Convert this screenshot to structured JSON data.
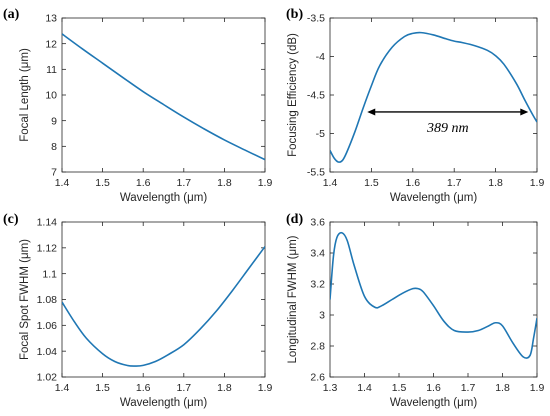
{
  "colors": {
    "line": "#1f77b4",
    "axis": "#262626",
    "annotation": "#000000"
  },
  "chart_data": [
    {
      "type": "line",
      "panel_label": "(a)",
      "xlabel": "Wavelength (μm)",
      "ylabel": "Focal Length (μm)",
      "xlim": [
        1.4,
        1.9
      ],
      "ylim": [
        7,
        13
      ],
      "xticks": [
        "1.4",
        "1.5",
        "1.6",
        "1.7",
        "1.8",
        "1.9"
      ],
      "yticks": [
        "7",
        "8",
        "9",
        "10",
        "11",
        "12",
        "13"
      ],
      "x": [
        1.4,
        1.45,
        1.5,
        1.55,
        1.6,
        1.65,
        1.7,
        1.75,
        1.8,
        1.85,
        1.9
      ],
      "y": [
        12.38,
        11.8,
        11.24,
        10.68,
        10.13,
        9.63,
        9.14,
        8.68,
        8.25,
        7.86,
        7.48
      ]
    },
    {
      "type": "line",
      "panel_label": "(b)",
      "xlabel": "Wavelength (μm)",
      "ylabel": "Focusing Efficiency (dB)",
      "xlim": [
        1.4,
        1.9
      ],
      "ylim": [
        -5.5,
        -3.5
      ],
      "xticks": [
        "1.4",
        "1.5",
        "1.6",
        "1.7",
        "1.8",
        "1.9"
      ],
      "yticks": [
        "-5.5",
        "-5",
        "-4.5",
        "-4",
        "-3.5"
      ],
      "x": [
        1.4,
        1.41,
        1.42,
        1.43,
        1.44,
        1.46,
        1.48,
        1.5,
        1.52,
        1.55,
        1.58,
        1.6,
        1.62,
        1.65,
        1.68,
        1.7,
        1.72,
        1.75,
        1.78,
        1.8,
        1.82,
        1.85,
        1.87,
        1.89,
        1.9
      ],
      "y": [
        -5.22,
        -5.32,
        -5.37,
        -5.35,
        -5.25,
        -4.98,
        -4.67,
        -4.38,
        -4.12,
        -3.88,
        -3.74,
        -3.7,
        -3.69,
        -3.72,
        -3.77,
        -3.8,
        -3.82,
        -3.86,
        -3.92,
        -3.99,
        -4.1,
        -4.35,
        -4.56,
        -4.76,
        -4.85
      ],
      "annotation": {
        "text": "389 nm",
        "x_start": 1.49,
        "x_end": 1.879,
        "y": -4.72
      }
    },
    {
      "type": "line",
      "panel_label": "(c)",
      "xlabel": "Wavelength (μm)",
      "ylabel": "Focal Spot FWHM (μm)",
      "xlim": [
        1.4,
        1.9
      ],
      "ylim": [
        1.02,
        1.14
      ],
      "xticks": [
        "1.4",
        "1.5",
        "1.6",
        "1.7",
        "1.8",
        "1.9"
      ],
      "yticks": [
        "1.02",
        "1.04",
        "1.06",
        "1.08",
        "1.1",
        "1.12",
        "1.14"
      ],
      "x": [
        1.4,
        1.43,
        1.46,
        1.5,
        1.53,
        1.56,
        1.58,
        1.6,
        1.63,
        1.66,
        1.7,
        1.74,
        1.78,
        1.82,
        1.86,
        1.9
      ],
      "y": [
        1.078,
        1.063,
        1.05,
        1.038,
        1.032,
        1.029,
        1.0285,
        1.029,
        1.032,
        1.037,
        1.045,
        1.057,
        1.071,
        1.087,
        1.104,
        1.121
      ]
    },
    {
      "type": "line",
      "panel_label": "(d)",
      "xlabel": "Wavelength (μm)",
      "ylabel": "Longitudinal FWHM (μm)",
      "xlim": [
        1.3,
        1.9
      ],
      "ylim": [
        2.6,
        3.6
      ],
      "xticks": [
        "1.3",
        "1.4",
        "1.5",
        "1.6",
        "1.7",
        "1.8",
        "1.9"
      ],
      "yticks": [
        "2.6",
        "2.8",
        "3",
        "3.2",
        "3.4",
        "3.6"
      ],
      "x": [
        1.3,
        1.31,
        1.32,
        1.335,
        1.35,
        1.37,
        1.4,
        1.43,
        1.45,
        1.48,
        1.51,
        1.54,
        1.555,
        1.57,
        1.6,
        1.63,
        1.66,
        1.7,
        1.73,
        1.76,
        1.78,
        1.8,
        1.83,
        1.86,
        1.88,
        1.89,
        1.9
      ],
      "y": [
        3.1,
        3.38,
        3.5,
        3.53,
        3.48,
        3.32,
        3.12,
        3.05,
        3.06,
        3.1,
        3.14,
        3.17,
        3.17,
        3.15,
        3.06,
        2.96,
        2.9,
        2.89,
        2.9,
        2.93,
        2.95,
        2.93,
        2.82,
        2.73,
        2.74,
        2.85,
        2.98
      ]
    }
  ]
}
